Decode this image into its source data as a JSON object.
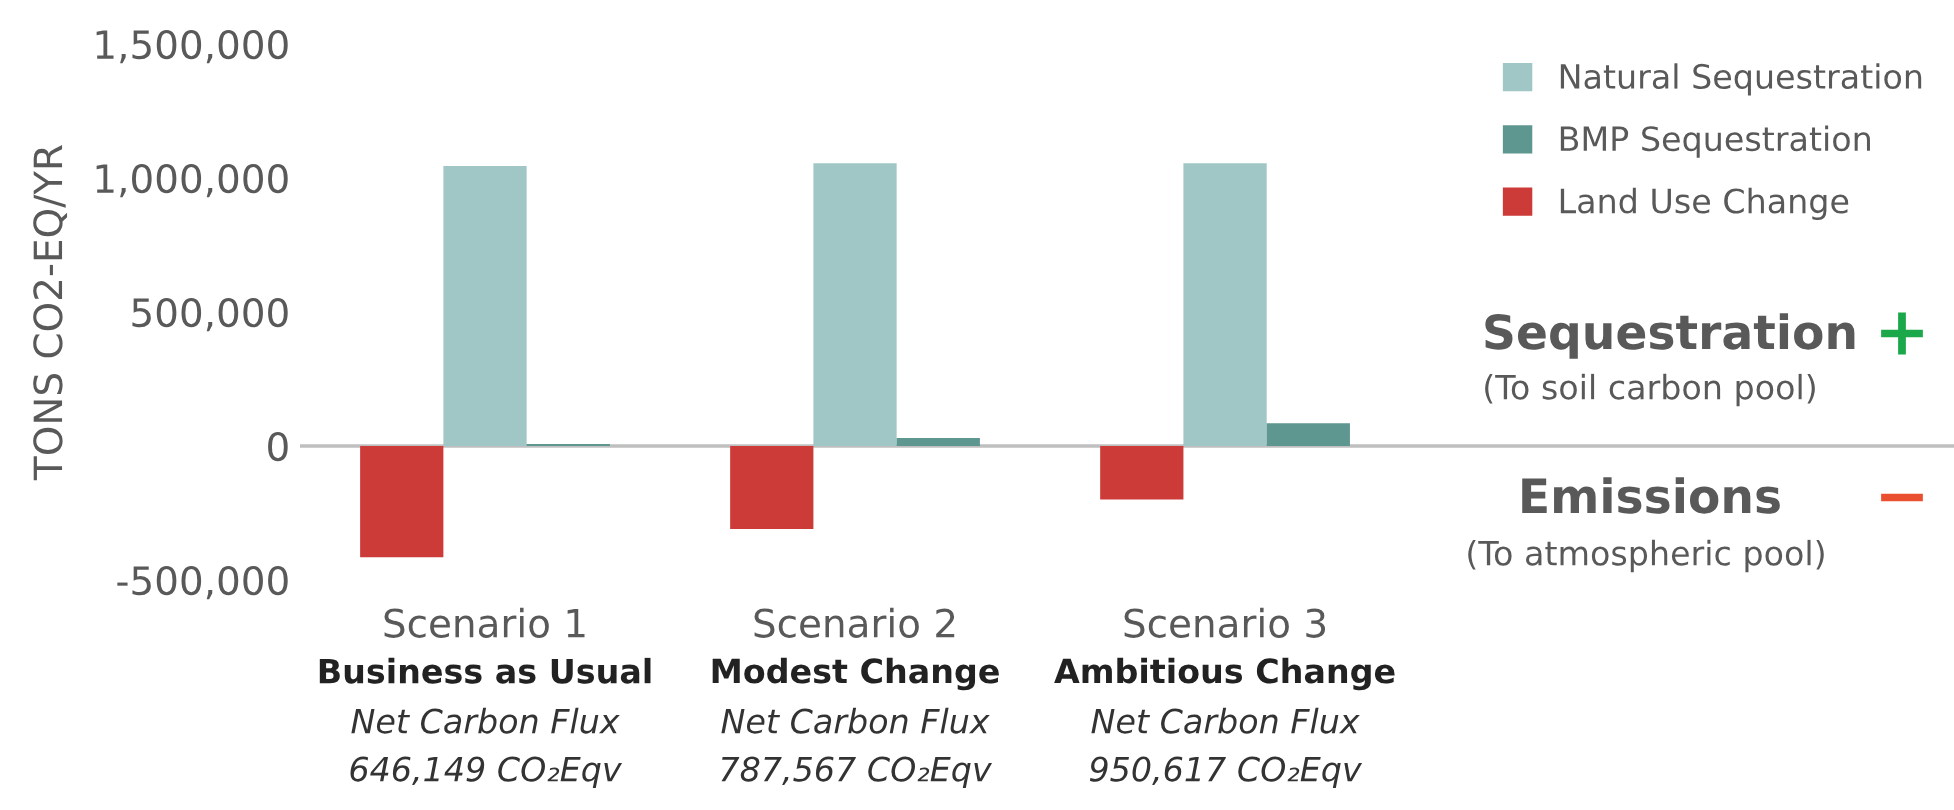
{
  "chart_data": {
    "type": "bar",
    "ylabel": "TONS CO2-EQ/YR",
    "categories": [
      "Scenario 1",
      "Scenario 2",
      "Scenario 3"
    ],
    "series": [
      {
        "name": "Natural Sequestration",
        "color": "#a0c6c6",
        "values": [
          1045000,
          1055000,
          1055000
        ]
      },
      {
        "name": "BMP Sequestration",
        "color": "#5e9690",
        "values": [
          7000,
          30000,
          85000
        ]
      },
      {
        "name": "Land Use Change",
        "color": "#cc3b38",
        "values": [
          -415000,
          -310000,
          -200000
        ]
      }
    ],
    "ylim": [
      -500000,
      1500000
    ],
    "yticks": [
      {
        "value": -500000,
        "label": "-500,000"
      },
      {
        "value": 0,
        "label": "0"
      },
      {
        "value": 500000,
        "label": "500,000"
      },
      {
        "value": 1000000,
        "label": "1,000,000"
      },
      {
        "value": 1500000,
        "label": "1,500,000"
      }
    ],
    "grid": false,
    "legend": "top right",
    "ref_lines": [
      {
        "axis": "y",
        "value": 0,
        "color": "#bfbfbf"
      }
    ],
    "annotations": [
      "Business as Usual",
      "Net Carbon Flux",
      "646,149 CO₂Eqv",
      "Modest Change",
      "Net Carbon Flux",
      "787,567 CO₂Eqv",
      "Ambitious Change",
      "Net Carbon Flux",
      "950,617 CO₂Eqv",
      "Sequestration",
      "(To soil carbon pool)",
      "+",
      "Emissions",
      "(To atmospheric pool)",
      "−"
    ]
  }
}
